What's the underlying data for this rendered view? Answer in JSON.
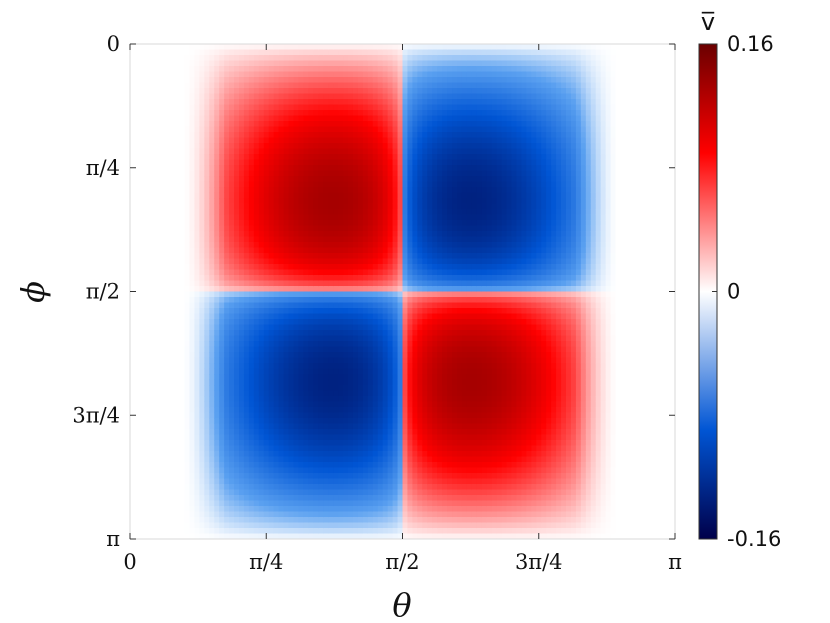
{
  "chart_data": {
    "type": "heatmap",
    "title": "",
    "xlabel": "θ",
    "ylabel": "ϕ",
    "xlim": [
      0,
      3.1416
    ],
    "ylim": [
      0,
      3.1416
    ],
    "y_axis_direction": "top-to-bottom",
    "x_ticks": [
      {
        "value": 0,
        "label": "0"
      },
      {
        "value": 0.7854,
        "label": "π/4"
      },
      {
        "value": 1.5708,
        "label": "π/2"
      },
      {
        "value": 2.3562,
        "label": "3π/4"
      },
      {
        "value": 3.1416,
        "label": "π"
      }
    ],
    "y_ticks": [
      {
        "value": 0,
        "label": "0"
      },
      {
        "value": 0.7854,
        "label": "π/4"
      },
      {
        "value": 1.5708,
        "label": "π/2"
      },
      {
        "value": 2.3562,
        "label": "3π/4"
      },
      {
        "value": 3.1416,
        "label": "π"
      }
    ],
    "colorbar": {
      "title": "v̅",
      "min": -0.16,
      "max": 0.16,
      "ticks": [
        {
          "value": 0.16,
          "label": "0.16"
        },
        {
          "value": 0,
          "label": "0"
        },
        {
          "value": -0.16,
          "label": "-0.16"
        }
      ],
      "colormap": "blue-white-red",
      "colors": {
        "low": "#00004a",
        "mid_low": "#0055d4",
        "zero": "#ffffff",
        "mid_high": "#ff0000",
        "high": "#6b0000"
      }
    },
    "field": {
      "description_values": [
        {
          "quadrant": "θ < π/2, ϕ < π/2",
          "peak_theta": 0.82,
          "peak_phi": 0.78,
          "peak_value": 0.16
        },
        {
          "quadrant": "θ > π/2, ϕ < π/2",
          "peak_theta": 2.41,
          "peak_phi": 0.78,
          "peak_value": -0.16
        },
        {
          "quadrant": "θ < π/2, ϕ > π/2",
          "peak_theta": 0.82,
          "peak_phi": 2.36,
          "peak_value": -0.16
        },
        {
          "quadrant": "θ > π/2, ϕ > π/2",
          "peak_theta": 2.41,
          "peak_phi": 2.36,
          "peak_value": 0.16
        }
      ],
      "grid_theta_steps": 110,
      "grid_phi_steps": 90
    }
  }
}
